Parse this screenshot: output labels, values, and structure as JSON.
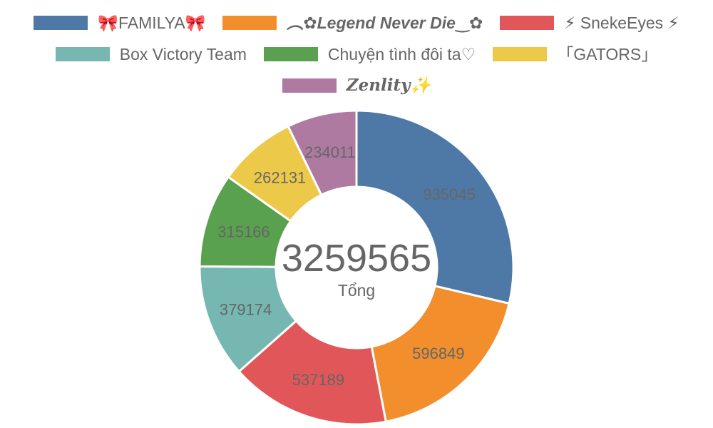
{
  "chart_data": {
    "type": "pie",
    "subtype": "doughnut",
    "categories": [
      "🎀FAMILYA🎀",
      "︵✿𝙇𝙚𝙜𝙚𝙣𝙙 𝙉𝙚𝙫𝙚𝙧 𝘿𝙞𝙚‿✿",
      "⚡ SnekeEyes ⚡",
      "Box Victory Team",
      "Chuyện tình đôi ta♡",
      "「GATORS」",
      "𝒁𝒆𝒏𝒍𝒊𝒕𝒚✨"
    ],
    "values": [
      935045,
      596849,
      537189,
      379174,
      315166,
      262131,
      234011
    ],
    "colors": [
      "#4e79a7",
      "#f28e2c",
      "#e15759",
      "#76b7b2",
      "#59a14f",
      "#edc949",
      "#af7aa1"
    ],
    "legend_position": "top",
    "center_total": "3259565",
    "center_caption": "Tổng"
  },
  "legend": {
    "labels": [
      "🎀FAMILYA🎀",
      "︵✿Legend Never Die‿✿",
      "⚡ SnekeEyes ⚡",
      "Box Victory Team",
      "Chuyện tình đôi ta♡",
      "「GATORS」",
      "Zenlity✨"
    ]
  }
}
